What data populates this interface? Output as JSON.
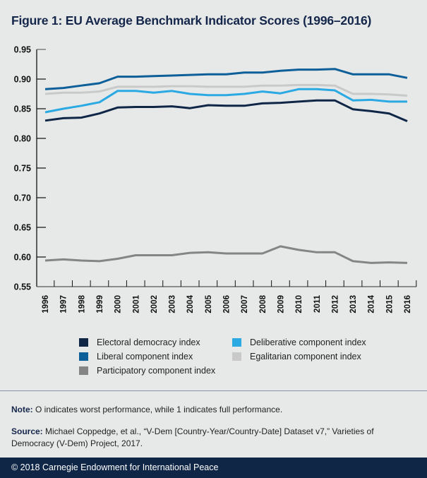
{
  "figure": {
    "title": "Figure 1: EU Average Benchmark Indicator Scores (1996–2016)"
  },
  "chart_data": {
    "type": "line",
    "title": "Figure 1: EU Average Benchmark Indicator Scores (1996–2016)",
    "xlabel": "",
    "ylabel": "",
    "x": [
      "1996",
      "1997",
      "1998",
      "1999",
      "2000",
      "2001",
      "2002",
      "2003",
      "2004",
      "2005",
      "2006",
      "2007",
      "2008",
      "2009",
      "2010",
      "2011",
      "2012",
      "2013",
      "2014",
      "2015",
      "2016"
    ],
    "ylim": [
      0.55,
      0.95
    ],
    "yticks": [
      "0.55",
      "0.60",
      "0.65",
      "0.70",
      "0.75",
      "0.80",
      "0.85",
      "0.90",
      "0.95"
    ],
    "grid": false,
    "legend_position": "bottom",
    "series": [
      {
        "name": "Electoral democracy index",
        "color": "#0f2647",
        "values": [
          0.83,
          0.834,
          0.835,
          0.842,
          0.852,
          0.853,
          0.853,
          0.854,
          0.851,
          0.856,
          0.855,
          0.855,
          0.859,
          0.86,
          0.862,
          0.864,
          0.864,
          0.849,
          0.846,
          0.842,
          0.829
        ]
      },
      {
        "name": "Liberal component index",
        "color": "#0d5f99",
        "values": [
          0.883,
          0.885,
          0.889,
          0.893,
          0.904,
          0.904,
          0.905,
          0.906,
          0.907,
          0.908,
          0.908,
          0.911,
          0.911,
          0.914,
          0.916,
          0.916,
          0.917,
          0.908,
          0.908,
          0.908,
          0.902
        ]
      },
      {
        "name": "Participatory component index",
        "color": "#858585",
        "values": [
          0.594,
          0.596,
          0.594,
          0.593,
          0.597,
          0.603,
          0.603,
          0.603,
          0.607,
          0.608,
          0.606,
          0.606,
          0.606,
          0.618,
          0.612,
          0.608,
          0.608,
          0.593,
          0.59,
          0.591,
          0.59
        ]
      },
      {
        "name": "Deliberative component index",
        "color": "#2aa9e2",
        "values": [
          0.844,
          0.85,
          0.855,
          0.861,
          0.88,
          0.88,
          0.877,
          0.88,
          0.875,
          0.873,
          0.873,
          0.875,
          0.879,
          0.876,
          0.883,
          0.883,
          0.881,
          0.864,
          0.865,
          0.862,
          0.862
        ]
      },
      {
        "name": "Egalitarian component index",
        "color": "#c9c9c9",
        "values": [
          0.875,
          0.877,
          0.877,
          0.879,
          0.887,
          0.887,
          0.887,
          0.888,
          0.888,
          0.887,
          0.887,
          0.887,
          0.889,
          0.889,
          0.89,
          0.89,
          0.889,
          0.875,
          0.875,
          0.874,
          0.872
        ]
      }
    ],
    "legend": [
      {
        "label": "Electoral democracy index",
        "color": "#0f2647"
      },
      {
        "label": "Liberal component index",
        "color": "#0d5f99"
      },
      {
        "label": "Participatory component index",
        "color": "#858585"
      },
      {
        "label": "Deliberative component index",
        "color": "#2aa9e2"
      },
      {
        "label": "Egalitarian component index",
        "color": "#c9c9c9"
      }
    ]
  },
  "notes": {
    "note_label": "Note:",
    "note_text": " O indicates worst performance, while 1 indicates full performance.",
    "source_label": "Source:",
    "source_text": " Michael Coppedge, et al., “V-Dem [Country-Year/Country-Date] Dataset v7,” Varieties of Democracy (V-Dem) Project, 2017."
  },
  "footer": {
    "copyright": "© 2018 Carnegie Endowment for International Peace"
  }
}
